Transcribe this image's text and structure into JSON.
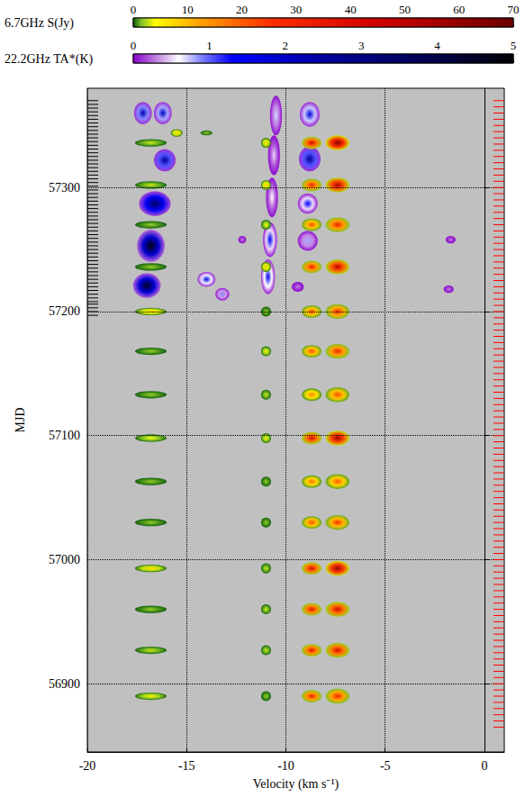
{
  "chart_data": {
    "type": "heatmap",
    "xlabel": "Velocity (km s⁻¹)",
    "ylabel": "MJD",
    "xlim": [
      -20,
      1
    ],
    "xticks": [
      -20,
      -15,
      -10,
      -5,
      0
    ],
    "ylim": [
      56845,
      57380
    ],
    "yticks": [
      56900,
      57000,
      57100,
      57200,
      57300
    ],
    "grid": true,
    "colorbars": [
      {
        "label": "6.7GHz S(Jy)",
        "range": [
          0,
          70
        ],
        "ticks": [
          0,
          10,
          20,
          30,
          40,
          50,
          60,
          70
        ],
        "colorscale": [
          [
            0,
            "#0b5a0b"
          ],
          [
            1.5,
            "#7fc42a"
          ],
          [
            4,
            "#ffff00"
          ],
          [
            12,
            "#ffa500"
          ],
          [
            25,
            "#ff3000"
          ],
          [
            45,
            "#d00000"
          ],
          [
            70,
            "#6b0000"
          ]
        ],
        "color": "#ff0000",
        "blobs": [
          [
            -7.4,
            56890,
            30,
            0.6,
            6
          ],
          [
            -8.7,
            56890,
            32,
            0.5,
            5
          ],
          [
            -11.0,
            56890,
            2,
            0.25,
            4
          ],
          [
            -16.8,
            56890,
            5,
            0.8,
            3
          ],
          [
            -7.4,
            56927,
            40,
            0.6,
            6
          ],
          [
            -8.7,
            56927,
            36,
            0.5,
            5
          ],
          [
            -11.0,
            56927,
            3,
            0.25,
            4
          ],
          [
            -16.8,
            56927,
            3,
            0.8,
            3
          ],
          [
            -7.4,
            56960,
            42,
            0.6,
            6
          ],
          [
            -8.7,
            56960,
            38,
            0.5,
            5
          ],
          [
            -11.0,
            56960,
            3,
            0.25,
            4
          ],
          [
            -16.8,
            56960,
            2,
            0.8,
            3
          ],
          [
            -7.4,
            56993,
            58,
            0.6,
            6
          ],
          [
            -8.7,
            56993,
            42,
            0.5,
            5
          ],
          [
            -11.0,
            56993,
            3,
            0.25,
            4
          ],
          [
            -16.8,
            56993,
            7,
            0.8,
            3
          ],
          [
            -7.4,
            57030,
            25,
            0.6,
            6
          ],
          [
            -8.7,
            57030,
            22,
            0.5,
            5
          ],
          [
            -11.0,
            57030,
            2,
            0.25,
            4
          ],
          [
            -16.8,
            57030,
            2,
            0.8,
            3
          ],
          [
            -7.4,
            57063,
            20,
            0.6,
            6
          ],
          [
            -8.7,
            57063,
            18,
            0.5,
            5
          ],
          [
            -11.0,
            57063,
            2,
            0.25,
            4
          ],
          [
            -16.8,
            57063,
            2,
            0.8,
            3
          ],
          [
            -7.4,
            57098,
            55,
            0.6,
            6
          ],
          [
            -8.7,
            57098,
            42,
            0.5,
            5
          ],
          [
            -11.0,
            57098,
            5,
            0.25,
            4
          ],
          [
            -16.8,
            57098,
            4,
            0.8,
            3
          ],
          [
            -7.4,
            57133,
            22,
            0.6,
            6
          ],
          [
            -8.7,
            57133,
            16,
            0.5,
            5
          ],
          [
            -11.0,
            57133,
            3,
            0.25,
            4
          ],
          [
            -16.8,
            57133,
            2,
            0.8,
            3
          ],
          [
            -7.4,
            57168,
            30,
            0.6,
            6
          ],
          [
            -8.7,
            57168,
            22,
            0.5,
            5
          ],
          [
            -11.0,
            57168,
            5,
            0.25,
            4
          ],
          [
            -16.8,
            57168,
            2,
            0.8,
            3
          ],
          [
            -7.4,
            57200,
            28,
            0.6,
            6
          ],
          [
            -8.7,
            57200,
            22,
            0.5,
            5
          ],
          [
            -11.0,
            57200,
            2,
            0.25,
            4
          ],
          [
            -16.8,
            57200,
            8,
            0.8,
            3
          ],
          [
            -7.4,
            57236,
            48,
            0.6,
            6
          ],
          [
            -8.7,
            57236,
            32,
            0.5,
            5
          ],
          [
            -11.0,
            57236,
            8,
            0.25,
            4
          ],
          [
            -16.8,
            57236,
            2,
            0.8,
            3
          ],
          [
            -7.4,
            57270,
            32,
            0.6,
            6
          ],
          [
            -8.7,
            57270,
            22,
            0.5,
            5
          ],
          [
            -11.0,
            57270,
            4,
            0.25,
            4
          ],
          [
            -16.8,
            57270,
            2,
            0.8,
            3
          ],
          [
            -7.4,
            57302,
            52,
            0.6,
            6
          ],
          [
            -8.7,
            57302,
            32,
            0.5,
            5
          ],
          [
            -11.0,
            57302,
            8,
            0.25,
            4
          ],
          [
            -16.8,
            57302,
            3,
            0.8,
            3
          ],
          [
            -7.4,
            57336,
            62,
            0.6,
            6
          ],
          [
            -8.7,
            57336,
            42,
            0.5,
            5
          ],
          [
            -11.0,
            57336,
            7,
            0.25,
            4
          ],
          [
            -16.8,
            57336,
            3,
            0.8,
            3
          ],
          [
            -15.5,
            57344,
            8,
            0.3,
            3
          ],
          [
            -14.0,
            57344,
            2,
            0.3,
            2
          ]
        ],
        "observation_dates": [
          56865,
          56870,
          56875,
          56880,
          56885,
          56890,
          56895,
          56900,
          56905,
          56910,
          56915,
          56920,
          56925,
          56930,
          56935,
          56940,
          56945,
          56950,
          56955,
          56960,
          56965,
          56970,
          56975,
          56980,
          56985,
          56990,
          56995,
          57000,
          57005,
          57010,
          57015,
          57020,
          57025,
          57030,
          57035,
          57040,
          57045,
          57050,
          57055,
          57060,
          57065,
          57070,
          57075,
          57080,
          57085,
          57090,
          57095,
          57100,
          57105,
          57110,
          57115,
          57120,
          57125,
          57130,
          57135,
          57140,
          57145,
          57150,
          57155,
          57160,
          57165,
          57170,
          57175,
          57180,
          57185,
          57190,
          57195,
          57200,
          57205,
          57210,
          57215,
          57220,
          57225,
          57230,
          57235,
          57240,
          57245,
          57250,
          57255,
          57260,
          57265,
          57270,
          57275,
          57280,
          57285,
          57290,
          57295,
          57300,
          57305,
          57310,
          57315,
          57320,
          57325,
          57330,
          57335,
          57340,
          57345,
          57350,
          57355,
          57360,
          57365,
          57370
        ]
      },
      {
        "label": "22.2GHz TA*(K)",
        "range": [
          0,
          5
        ],
        "ticks": [
          0,
          1,
          2,
          3,
          4,
          5
        ],
        "colorscale": [
          [
            0,
            "#8800cc"
          ],
          [
            0.3,
            "#c080e0"
          ],
          [
            0.6,
            "#ffffff"
          ],
          [
            0.9,
            "#8080ff"
          ],
          [
            1.3,
            "#0000ff"
          ],
          [
            2.5,
            "#0000a0"
          ],
          [
            4,
            "#00004a"
          ],
          [
            5,
            "#000000"
          ]
        ],
        "color": "#000000",
        "blobs": [
          [
            -17.0,
            57221,
            4.5,
            0.7,
            10
          ],
          [
            -16.8,
            57253,
            4.8,
            0.7,
            13
          ],
          [
            -16.6,
            57287,
            3.6,
            0.8,
            10
          ],
          [
            -16.1,
            57322,
            2.6,
            0.55,
            9
          ],
          [
            -17.2,
            57360,
            2.2,
            0.45,
            9
          ],
          [
            -16.2,
            57360,
            2.0,
            0.45,
            9
          ],
          [
            -14.0,
            57226,
            1.6,
            0.45,
            6
          ],
          [
            -13.2,
            57214,
            0.9,
            0.35,
            5
          ],
          [
            -12.2,
            57258,
            0.3,
            0.2,
            3
          ],
          [
            -10.9,
            57228,
            1.5,
            0.35,
            14
          ],
          [
            -10.8,
            57258,
            1.3,
            0.35,
            14
          ],
          [
            -10.7,
            57292,
            0.6,
            0.3,
            16
          ],
          [
            -10.6,
            57326,
            0.5,
            0.3,
            16
          ],
          [
            -10.5,
            57358,
            0.7,
            0.3,
            16
          ],
          [
            -8.9,
            57257,
            0.8,
            0.5,
            8
          ],
          [
            -8.9,
            57287,
            1.3,
            0.5,
            8
          ],
          [
            -8.8,
            57323,
            2.6,
            0.55,
            10
          ],
          [
            -8.8,
            57359,
            1.8,
            0.5,
            10
          ],
          [
            -9.4,
            57220,
            0.3,
            0.3,
            4
          ],
          [
            -1.7,
            57258,
            0.3,
            0.25,
            3
          ],
          [
            -1.8,
            57218,
            0.3,
            0.25,
            3
          ]
        ],
        "observation_dates": [
          57197,
          57200,
          57203,
          57206,
          57208,
          57211,
          57214,
          57217,
          57220,
          57223,
          57226,
          57229,
          57232,
          57235,
          57238,
          57241,
          57244,
          57247,
          57250,
          57253,
          57256,
          57259,
          57262,
          57265,
          57268,
          57271,
          57274,
          57277,
          57280,
          57283,
          57286,
          57289,
          57292,
          57295,
          57298,
          57301,
          57304,
          57307,
          57310,
          57313,
          57316,
          57319,
          57322,
          57325,
          57328,
          57331,
          57334,
          57337,
          57340,
          57343,
          57346,
          57349,
          57352,
          57355,
          57358,
          57361,
          57364,
          57367,
          57370
        ]
      }
    ]
  }
}
